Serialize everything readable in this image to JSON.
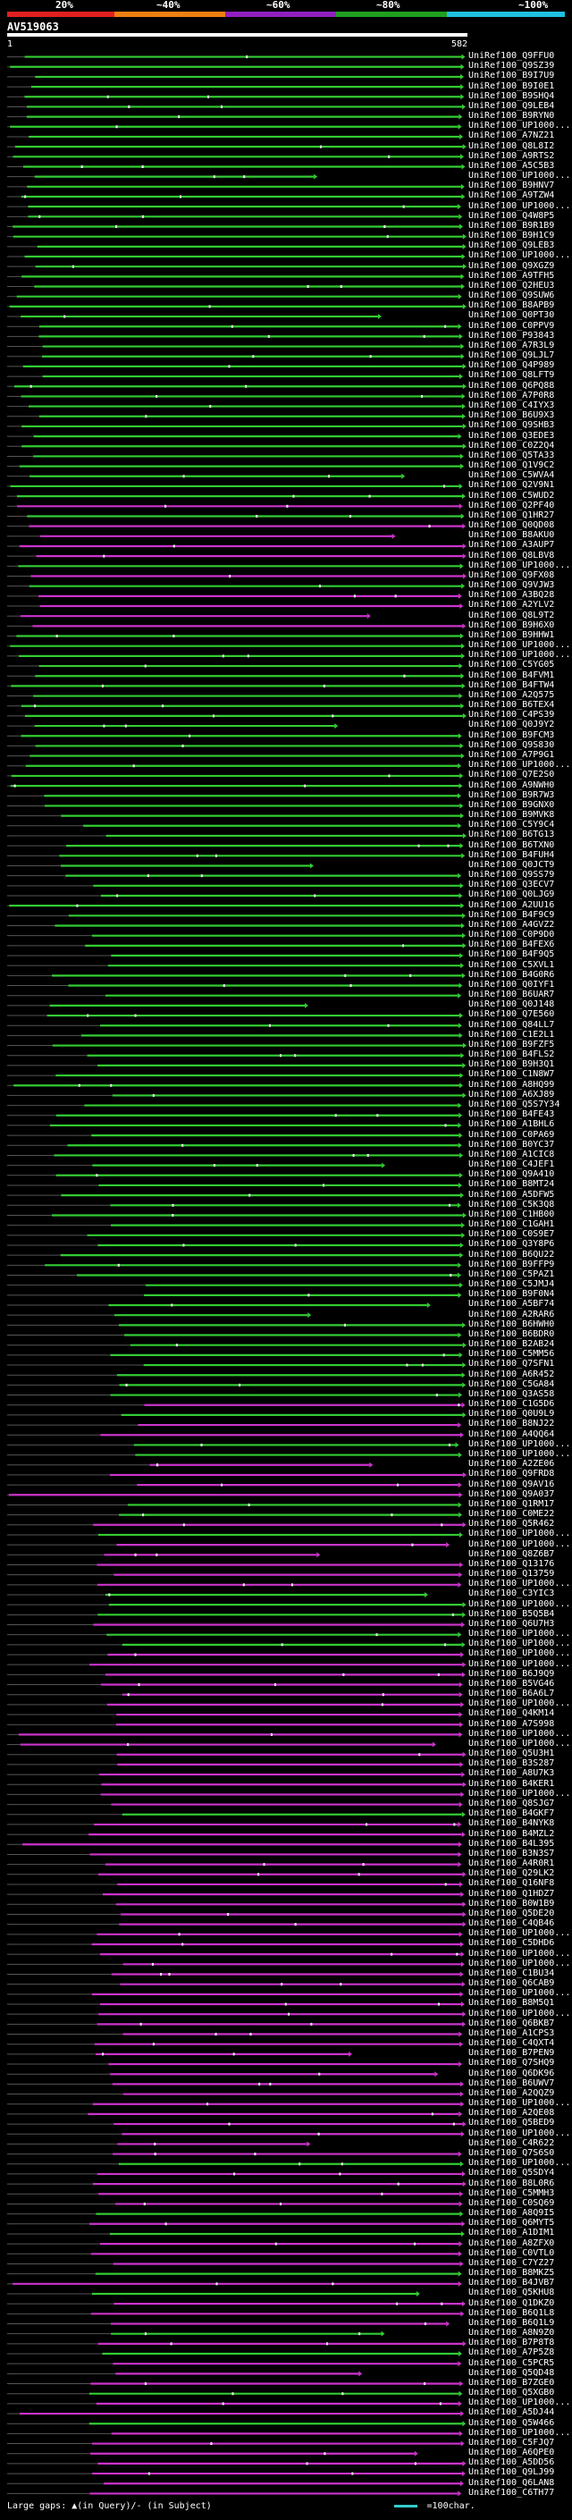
{
  "header": {
    "percent_labels": [
      "20%",
      "~40%",
      "~60%",
      "~80%",
      "~100%"
    ],
    "segment_colors": [
      "#e02020",
      "#f08010",
      "#9020c0",
      "#20a020",
      "#20c0e0"
    ]
  },
  "query": {
    "title": "AV519063",
    "start_label": "1",
    "end_label": "582"
  },
  "colors": {
    "green": "#33cc33",
    "magenta": "#cc33cc",
    "cyan": "#33cccc",
    "gap": "#555555",
    "dot": "#ffffff"
  },
  "hits": [
    "UniRef100_Q9FFU0",
    "UniRef100_Q9SZ39",
    "UniRef100_B9I7U9",
    "UniRef100_B9I0E1",
    "UniRef100_B9SHQ4",
    "UniRef100_Q9LEB4",
    "UniRef100_B9RYN0",
    "UniRef100_UP1000...",
    "UniRef100_A7NZ21",
    "UniRef100_Q8L8I2",
    "UniRef100_A9RTS2",
    "UniRef100_A5C5B3",
    "UniRef100_UP1000...",
    "UniRef100_B9HNV7",
    "UniRef100_A9TZW4",
    "UniRef100_UP1000...",
    "UniRef100_Q4W8P5",
    "UniRef100_B9R1B9",
    "UniRef100_B9H1C9",
    "UniRef100_Q9LEB3",
    "UniRef100_UP1000...",
    "UniRef100_Q9XGZ9",
    "UniRef100_A9TFH5",
    "UniRef100_Q2HEU3",
    "UniRef100_Q9SUW6",
    "UniRef100_B8APB9",
    "UniRef100_Q0PT30",
    "UniRef100_C0PPV9",
    "UniRef100_P93843",
    "UniRef100_A7R3L9",
    "UniRef100_Q9LJL7",
    "UniRef100_Q4P989",
    "UniRef100_Q8LFT9",
    "UniRef100_Q6PQ88",
    "UniRef100_A7P0R8",
    "UniRef100_C4IYX3",
    "UniRef100_B6U9X3",
    "UniRef100_Q9SHB3",
    "UniRef100_Q3EDE3",
    "UniRef100_C0Z2Q4",
    "UniRef100_Q5TA33",
    "UniRef100_Q1V9C2",
    "UniRef100_C5WVA4",
    "UniRef100_Q2V9N1",
    "UniRef100_C5WUD2",
    "UniRef100_Q2PF40",
    "UniRef100_Q1HR27",
    "UniRef100_Q0QD08",
    "UniRef100_B8AKU0",
    "UniRef100_A3AUP7",
    "UniRef100_Q8LBV8",
    "UniRef100_UP1000...",
    "UniRef100_Q9FX08",
    "UniRef100_Q9VJW3",
    "UniRef100_A3BQ28",
    "UniRef100_A2YLV2",
    "UniRef100_Q8L9T2",
    "UniRef100_B9H6X0",
    "UniRef100_B9HHW1",
    "UniRef100_UP1000...",
    "UniRef100_UP1000...",
    "UniRef100_C5YG05",
    "UniRef100_B4FVM1",
    "UniRef100_B4FTW4",
    "UniRef100_A2Q575",
    "UniRef100_B6TEX4",
    "UniRef100_C4PS39",
    "UniRef100_Q0J9Y2",
    "UniRef100_B9FCM3",
    "UniRef100_Q9S830",
    "UniRef100_A7P9G1",
    "UniRef100_UP1000...",
    "UniRef100_Q7E2S0",
    "UniRef100_A9NWH0",
    "UniRef100_B9R7W3",
    "UniRef100_B9GNX0",
    "UniRef100_B9MVK8",
    "UniRef100_C5Y9C4",
    "UniRef100_B6TG13",
    "UniRef100_B6TXN0",
    "UniRef100_B4FUH4",
    "UniRef100_Q0JCT9",
    "UniRef100_Q9SS79",
    "UniRef100_Q3ECV7",
    "UniRef100_Q0LJG9",
    "UniRef100_A2UU16",
    "UniRef100_B4F9C9",
    "UniRef100_A4GVZ2",
    "UniRef100_C0P9D0",
    "UniRef100_B4FEX6",
    "UniRef100_B4F9Q5",
    "UniRef100_C5XVL1",
    "UniRef100_B4G0R6",
    "UniRef100_Q0IYF1",
    "UniRef100_B6UAR7",
    "UniRef100_Q0J148",
    "UniRef100_Q7E560",
    "UniRef100_Q84LL7",
    "UniRef100_C1E2L1",
    "UniRef100_B9FZF5",
    "UniRef100_B4FLS2",
    "UniRef100_B9H3Q1",
    "UniRef100_C1N8W7",
    "UniRef100_A8HQ99",
    "UniRef100_A6XJ89",
    "UniRef100_Q5S7Y34",
    "UniRef100_B4FE43",
    "UniRef100_A1BHL6",
    "UniRef100_C0PA69",
    "UniRef100_B0YC37",
    "UniRef100_A1CIC8",
    "UniRef100_C4JEF1",
    "UniRef100_Q9A410",
    "UniRef100_B8MT24",
    "UniRef100_A5DFW5",
    "UniRef100_C5K3Q8",
    "UniRef100_C1HB00",
    "UniRef100_C1GAH1",
    "UniRef100_C0S9E7",
    "UniRef100_Q3Y8P6",
    "UniRef100_B6QU22",
    "UniRef100_B9FFP9",
    "UniRef100_C5PAZ1",
    "UniRef100_C5JMJ4",
    "UniRef100_B9F0N4",
    "UniRef100_A5BF74",
    "UniRef100_A2RAR6",
    "UniRef100_B6HWH0",
    "UniRef100_B6BDR0",
    "UniRef100_B2AB24",
    "UniRef100_C5MM56",
    "UniRef100_Q7SFN1",
    "UniRef100_A6R452",
    "UniRef100_C5GA84",
    "UniRef100_Q3AS58",
    "UniRef100_C1G5D6",
    "UniRef100_Q0U9L9",
    "UniRef100_B8NJ22",
    "UniRef100_A4QQ64",
    "UniRef100_UP1000...",
    "UniRef100_UP1000...",
    "UniRef100_A2ZE06",
    "UniRef100_Q9FRD8",
    "UniRef100_Q9AV16",
    "UniRef100_Q9A037",
    "UniRef100_Q1RM17",
    "UniRef100_C0ME22",
    "UniRef100_Q5R462",
    "UniRef100_UP1000...",
    "UniRef100_UP1000...",
    "UniRef100_Q8Z6B7",
    "UniRef100_Q13176",
    "UniRef100_Q13759",
    "UniRef100_UP1000...",
    "UniRef100_C3YIC3",
    "UniRef100_UP1000...",
    "UniRef100_B5Q5B4",
    "UniRef100_Q6U7H3",
    "UniRef100_UP1000...",
    "UniRef100_UP1000...",
    "UniRef100_UP1000...",
    "UniRef100_UP1000...",
    "UniRef100_B6J9Q9",
    "UniRef100_B5VG46",
    "UniRef100_B6A6L7",
    "UniRef100_UP1000...",
    "UniRef100_Q4KM14",
    "UniRef100_A7S998",
    "UniRef100_UP1000...",
    "UniRef100_UP1000...",
    "UniRef100_Q5U3H1",
    "UniRef100_B3S287",
    "UniRef100_A8U7K3",
    "UniRef100_B4KER1",
    "UniRef100_UP1000...",
    "UniRef100_Q8SJG7",
    "UniRef100_B4GKF7",
    "UniRef100_B4NYK8",
    "UniRef100_B4MZL2",
    "UniRef100_B4L395",
    "UniRef100_B3N3S7",
    "UniRef100_A4R0R1",
    "UniRef100_Q29LK2",
    "UniRef100_Q16NF8",
    "UniRef100_Q1HDZ7",
    "UniRef100_B0W1B9",
    "UniRef100_Q5DE20",
    "UniRef100_C4QB46",
    "UniRef100_UP1000...",
    "UniRef100_C5DHD6",
    "UniRef100_UP1000...",
    "UniRef100_UP1000...",
    "UniRef100_C1BU34",
    "UniRef100_Q6CAB9",
    "UniRef100_UP1000...",
    "UniRef100_B8M5Q1",
    "UniRef100_UP1000...",
    "UniRef100_Q6BKB7",
    "UniRef100_A1CPS3",
    "UniRef100_C4QXT4",
    "UniRef100_B7PEN9",
    "UniRef100_Q7SHQ9",
    "UniRef100_Q6DK96",
    "UniRef100_B6UWV7",
    "UniRef100_A2QQZ9",
    "UniRef100_UP1000...",
    "UniRef100_A2QE08",
    "UniRef100_Q5BED9",
    "UniRef100_UP1000...",
    "UniRef100_C4R622",
    "UniRef100_Q7S6S0",
    "UniRef100_UP1000...",
    "UniRef100_Q5SDY4",
    "UniRef100_B8L0R6",
    "UniRef100_C5MMH3",
    "UniRef100_C0SQ69",
    "UniRef100_A8Q9I5",
    "UniRef100_Q6MYT5",
    "UniRef100_A1DIM1",
    "UniRef100_A8ZFX0",
    "UniRef100_C0VTL0",
    "UniRef100_C7YZ27",
    "UniRef100_B8MKZ5",
    "UniRef100_B4JVB7",
    "UniRef100_Q5KHU8",
    "UniRef100_Q1DKZ0",
    "UniRef100_B6Q1L8",
    "UniRef100_B6Q1L9",
    "UniRef100_A8N9Z0",
    "UniRef100_B7P8T8",
    "UniRef100_A7P5Z8",
    "UniRef100_C5PCR5",
    "UniRef100_Q5QD48",
    "UniRef100_B7ZGE0",
    "UniRef100_Q5XGB0",
    "UniRef100_UP1000...",
    "UniRef100_A5DJ44",
    "UniRef100_Q5W466",
    "UniRef100_UP1000...",
    "UniRef100_C5FJQ7",
    "UniRef100_A6QPE0",
    "UniRef100_A5DD56",
    "UniRef100_Q9LJ99",
    "UniRef100_Q6LAN8",
    "UniRef100_C6TH77"
  ],
  "footer": {
    "text": "Large gaps: ▲(in Query)/- (in Subject)",
    "scale_text": "=100char."
  }
}
